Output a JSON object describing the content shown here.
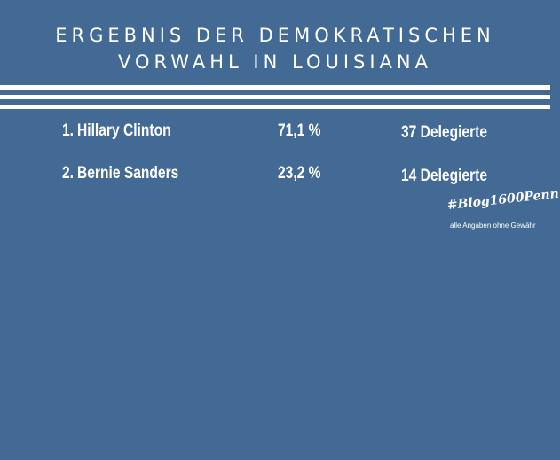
{
  "header": {
    "title_line1": "ERGEBNIS DER DEMOKRATISCHEN",
    "title_line2": "VORWAHL IN LOUISIANA"
  },
  "results": [
    {
      "rank": "1.",
      "name": "Hillary Clinton",
      "percent": "71,1 %",
      "delegates": "37 Delegierte"
    },
    {
      "rank": "2.",
      "name": "Bernie Sanders",
      "percent": "23,2 %",
      "delegates": "14 Delegierte"
    }
  ],
  "footer": {
    "hashtag": "#Blog1600Penn",
    "disclaimer": "alle Angaben ohne Gewähr"
  },
  "colors": {
    "background": "#426a95",
    "text": "#ffffff"
  }
}
